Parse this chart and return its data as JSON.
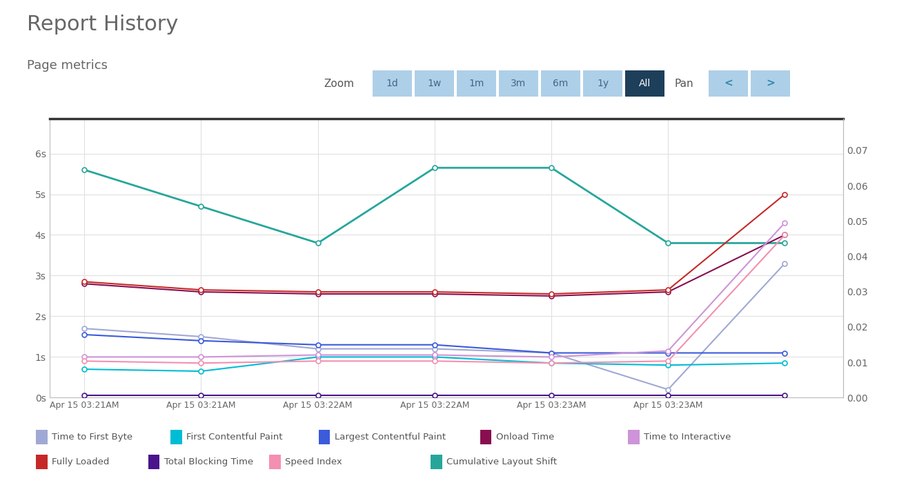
{
  "title": "Report History",
  "subtitle": "Page metrics",
  "background_color": "#ffffff",
  "x_labels": [
    "Apr 15 03:21AM",
    "Apr 15 03:21AM",
    "Apr 15 03:22AM",
    "Apr 15 03:22AM",
    "Apr 15 03:23AM",
    "Apr 15 03:23AM"
  ],
  "x_values": [
    0,
    1,
    2,
    3,
    4,
    5,
    6
  ],
  "series": {
    "Time to First Byte": {
      "color": "#a0a8d4",
      "values": [
        1.7,
        1.5,
        1.2,
        1.2,
        1.1,
        0.2,
        3.3
      ],
      "marker": "o",
      "linewidth": 1.5,
      "zorder": 5,
      "secondary_axis": false
    },
    "First Contentful Paint": {
      "color": "#00bcd4",
      "values": [
        0.7,
        0.65,
        1.0,
        1.0,
        0.85,
        0.8,
        0.85
      ],
      "marker": "o",
      "linewidth": 1.5,
      "zorder": 5,
      "secondary_axis": false
    },
    "Largest Contentful Paint": {
      "color": "#3b5bdb",
      "values": [
        1.55,
        1.4,
        1.3,
        1.3,
        1.1,
        1.1,
        1.1
      ],
      "marker": "o",
      "linewidth": 1.5,
      "zorder": 5,
      "secondary_axis": false
    },
    "Onload Time": {
      "color": "#880e4f",
      "values": [
        2.8,
        2.6,
        2.55,
        2.55,
        2.5,
        2.6,
        4.0
      ],
      "marker": "o",
      "linewidth": 1.5,
      "zorder": 5,
      "secondary_axis": false
    },
    "Time to Interactive": {
      "color": "#ce93d8",
      "values": [
        1.0,
        1.0,
        1.05,
        1.05,
        1.0,
        1.15,
        4.3
      ],
      "marker": "o",
      "linewidth": 1.5,
      "zorder": 5,
      "secondary_axis": false
    },
    "Fully Loaded": {
      "color": "#c62828",
      "values": [
        2.85,
        2.65,
        2.6,
        2.6,
        2.55,
        2.65,
        5.0
      ],
      "marker": "o",
      "linewidth": 1.5,
      "zorder": 5,
      "secondary_axis": false
    },
    "Total Blocking Time": {
      "color": "#4a148c",
      "values": [
        0.05,
        0.05,
        0.05,
        0.05,
        0.05,
        0.05,
        0.05
      ],
      "marker": "o",
      "linewidth": 1.5,
      "zorder": 5,
      "secondary_axis": false
    },
    "Speed Index": {
      "color": "#f48fb1",
      "values": [
        0.9,
        0.85,
        0.9,
        0.9,
        0.85,
        0.9,
        4.0
      ],
      "marker": "o",
      "linewidth": 1.5,
      "zorder": 5,
      "secondary_axis": false
    },
    "Cumulative Layout Shift": {
      "color": "#26a69a",
      "values": [
        5.6,
        4.7,
        3.8,
        5.65,
        5.65,
        3.8,
        3.8
      ],
      "marker": "o",
      "linewidth": 2.0,
      "zorder": 4,
      "secondary_axis": false
    }
  },
  "ylim_left": [
    0,
    6.86
  ],
  "ylim_right": [
    0,
    0.079
  ],
  "yticks_left": [
    0,
    1,
    2,
    3,
    4,
    5,
    6
  ],
  "yticks_left_labels": [
    "0s",
    "1s",
    "2s",
    "3s",
    "4s",
    "5s",
    "6s"
  ],
  "yticks_right": [
    0.0,
    0.01,
    0.02,
    0.03,
    0.04,
    0.05,
    0.06,
    0.07
  ],
  "grid_color": "#e0e0e0",
  "zoom_buttons": [
    "1d",
    "1w",
    "1m",
    "3m",
    "6m",
    "1y",
    "All"
  ],
  "active_zoom": "All",
  "zoom_button_color": "#aecfe8",
  "active_button_color": "#1e3f5a",
  "pan_button_color": "#aecfe8",
  "marker_size": 5,
  "marker_face_color": "white",
  "legend_row1": [
    [
      "Time to First Byte",
      "#a0a8d4"
    ],
    [
      "First Contentful Paint",
      "#00bcd4"
    ],
    [
      "Largest Contentful Paint",
      "#3b5bdb"
    ],
    [
      "Onload Time",
      "#880e4f"
    ],
    [
      "Time to Interactive",
      "#ce93d8"
    ]
  ],
  "legend_row2": [
    [
      "Fully Loaded",
      "#c62828"
    ],
    [
      "Total Blocking Time",
      "#4a148c"
    ],
    [
      "Speed Index",
      "#f48fb1"
    ],
    [
      "Cumulative Layout Shift",
      "#26a69a"
    ]
  ]
}
